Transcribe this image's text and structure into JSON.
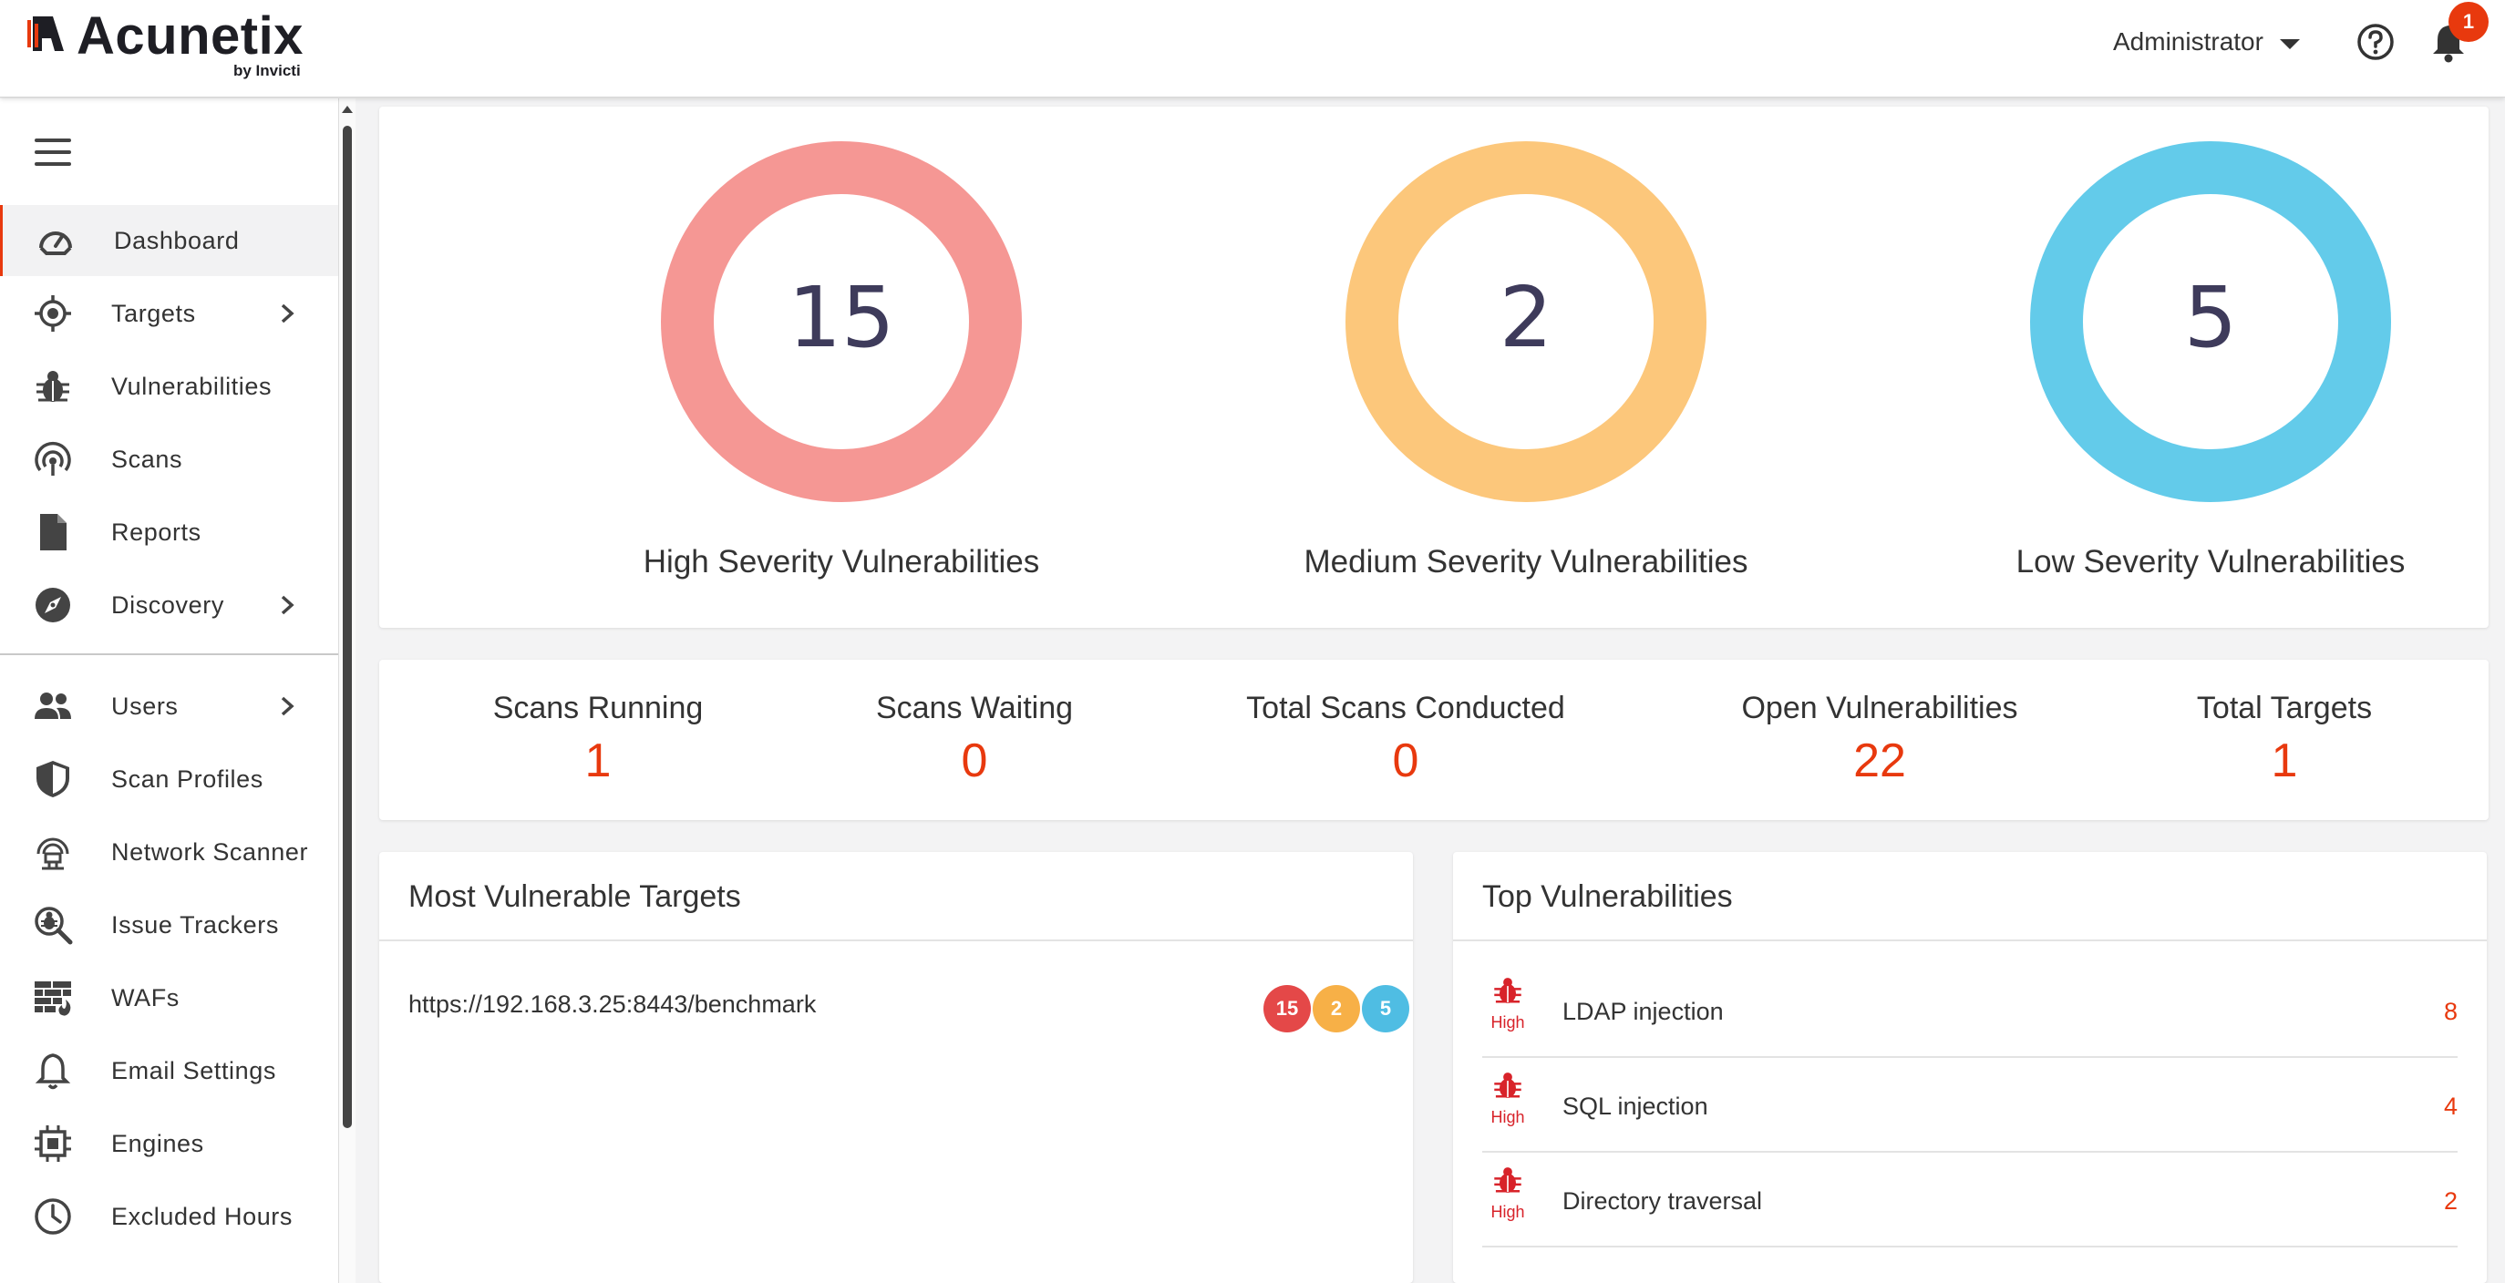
{
  "header": {
    "brand": "Acunetix",
    "brand_sub": "by Invicti",
    "user": "Administrator",
    "notification_count": "1"
  },
  "sidebar": {
    "items": [
      {
        "label": "Dashboard",
        "icon": "speedometer-icon",
        "active": true
      },
      {
        "label": "Targets",
        "icon": "crosshair-icon",
        "has_submenu": true
      },
      {
        "label": "Vulnerabilities",
        "icon": "bug-icon"
      },
      {
        "label": "Scans",
        "icon": "radar-icon"
      },
      {
        "label": "Reports",
        "icon": "document-icon"
      },
      {
        "label": "Discovery",
        "icon": "compass-icon",
        "has_submenu": true
      },
      {
        "label": "Users",
        "icon": "users-icon",
        "has_submenu": true
      },
      {
        "label": "Scan Profiles",
        "icon": "shield-icon"
      },
      {
        "label": "Network Scanner",
        "icon": "network-scanner-icon"
      },
      {
        "label": "Issue Trackers",
        "icon": "magnify-bug-icon"
      },
      {
        "label": "WAFs",
        "icon": "firewall-icon"
      },
      {
        "label": "Email Settings",
        "icon": "bell-outline-icon"
      },
      {
        "label": "Engines",
        "icon": "chip-icon"
      },
      {
        "label": "Excluded Hours",
        "icon": "clock-icon"
      }
    ]
  },
  "severity": {
    "high": {
      "count": "15",
      "label": "High Severity Vulnerabilities",
      "color": "#f59794"
    },
    "medium": {
      "count": "2",
      "label": "Medium Severity Vulnerabilities",
      "color": "#fcc77b"
    },
    "low": {
      "count": "5",
      "label": "Low Severity Vulnerabilities",
      "color": "#63cbea"
    }
  },
  "stats": [
    {
      "label": "Scans Running",
      "value": "1"
    },
    {
      "label": "Scans Waiting",
      "value": "0"
    },
    {
      "label": "Total Scans Conducted",
      "value": "0"
    },
    {
      "label": "Open Vulnerabilities",
      "value": "22"
    },
    {
      "label": "Total Targets",
      "value": "1"
    }
  ],
  "most_vulnerable": {
    "title": "Most Vulnerable Targets",
    "targets": [
      {
        "url": "https://192.168.3.25:8443/benchmark",
        "high": "15",
        "medium": "2",
        "low": "5"
      }
    ]
  },
  "top_vulnerabilities": {
    "title": "Top Vulnerabilities",
    "items": [
      {
        "severity": "High",
        "name": "LDAP injection",
        "count": "8"
      },
      {
        "severity": "High",
        "name": "SQL injection",
        "count": "4"
      },
      {
        "severity": "High",
        "name": "Directory traversal",
        "count": "2"
      }
    ]
  },
  "colors": {
    "accent": "#e8390e",
    "high": "#e44848",
    "medium": "#f7b047",
    "low": "#4fbde3"
  }
}
